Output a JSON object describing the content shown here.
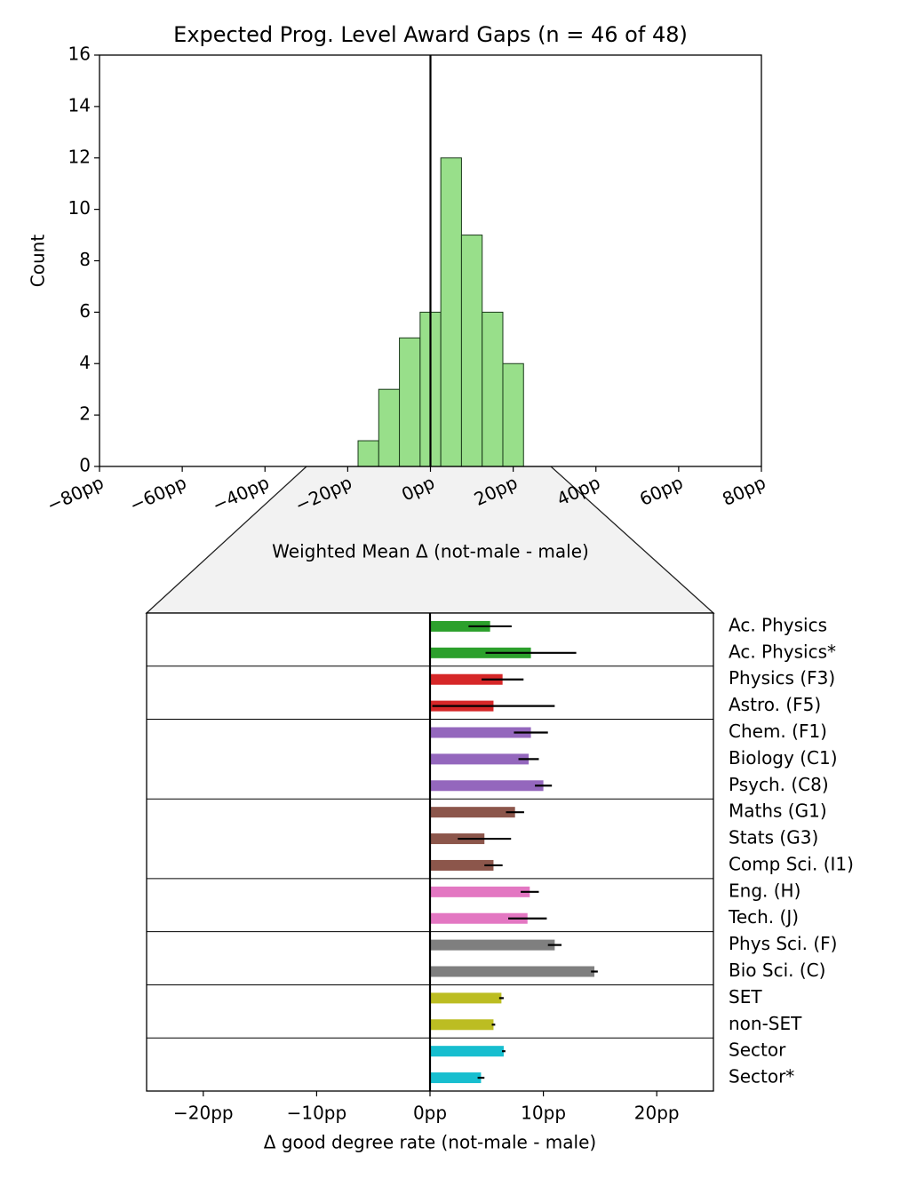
{
  "chart_data": [
    {
      "type": "histogram",
      "title": "Expected Prog. Level Award Gaps (n = 46 of 48)",
      "xlabel": "Weighted Mean Δ (not-male - male)",
      "ylabel": "Count",
      "bins": [
        -17.5,
        -12.5,
        -7.5,
        -2.5,
        2.5,
        7.5,
        12.5,
        17.5,
        22.5
      ],
      "counts": [
        1,
        3,
        5,
        6,
        12,
        9,
        6,
        4
      ],
      "color": "#98df8a",
      "edgecolor": "#1a3a1a",
      "xlim": [
        -80,
        80
      ],
      "ylim": [
        0,
        16
      ],
      "xticks": [
        {
          "value": -80,
          "label": "−80pp"
        },
        {
          "value": -60,
          "label": "−60pp"
        },
        {
          "value": -40,
          "label": "−40pp"
        },
        {
          "value": -20,
          "label": "−20pp"
        },
        {
          "value": 0,
          "label": "0pp"
        },
        {
          "value": 20,
          "label": "20pp"
        },
        {
          "value": 40,
          "label": "40pp"
        },
        {
          "value": 60,
          "label": "60pp"
        },
        {
          "value": 80,
          "label": "80pp"
        }
      ],
      "yticks": [
        0,
        2,
        4,
        6,
        8,
        10,
        12,
        14,
        16
      ],
      "vline": 0
    },
    {
      "type": "barh",
      "xlabel": "Δ good degree rate (not-male - male)",
      "categories": [
        "Ac. Physics",
        "Ac. Physics*",
        "Physics (F3)",
        "Astro. (F5)",
        "Chem. (F1)",
        "Biology (C1)",
        "Psych. (C8)",
        "Maths (G1)",
        "Stats (G3)",
        "Comp Sci. (I1)",
        "Eng. (H)",
        "Tech. (J)",
        "Phys Sci. (F)",
        "Bio Sci. (C)",
        "SET",
        "non-SET",
        "Sector",
        "Sector*"
      ],
      "values": [
        5.3,
        8.9,
        6.4,
        5.6,
        8.9,
        8.7,
        10.0,
        7.5,
        4.8,
        5.6,
        8.8,
        8.6,
        11.0,
        14.5,
        6.3,
        5.6,
        6.5,
        4.5
      ],
      "errors": [
        1.9,
        4.0,
        1.85,
        5.4,
        1.5,
        0.9,
        0.75,
        0.8,
        2.35,
        0.8,
        0.8,
        1.7,
        0.6,
        0.3,
        0.2,
        0.15,
        0.15,
        0.3
      ],
      "colors": [
        "#2ca02c",
        "#2ca02c",
        "#d62728",
        "#d62728",
        "#9467bd",
        "#9467bd",
        "#9467bd",
        "#8c564b",
        "#8c564b",
        "#8c564b",
        "#e377c2",
        "#e377c2",
        "#7f7f7f",
        "#7f7f7f",
        "#bcbd22",
        "#bcbd22",
        "#17becf",
        "#17becf"
      ],
      "groups": [
        2,
        2,
        3,
        3,
        2,
        2,
        2,
        2
      ],
      "xlim": [
        -25,
        25
      ],
      "xticks": [
        {
          "value": -20,
          "label": "−20pp"
        },
        {
          "value": -10,
          "label": "−10pp"
        },
        {
          "value": 0,
          "label": "0pp"
        },
        {
          "value": 10,
          "label": "10pp"
        },
        {
          "value": 20,
          "label": "20pp"
        }
      ],
      "vline": 0
    }
  ]
}
